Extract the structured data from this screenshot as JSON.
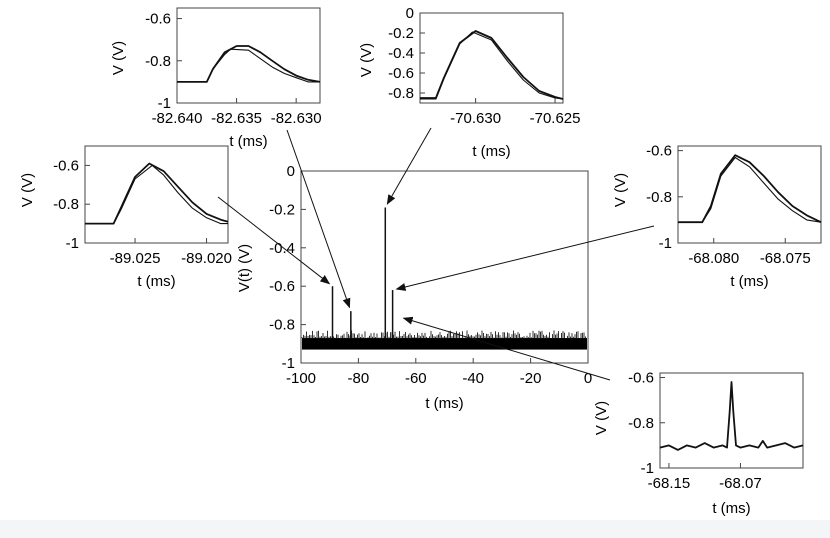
{
  "chart_data": [
    {
      "id": "main",
      "type": "line",
      "xlabel": "t  (ms)",
      "ylabel": "V(t)  (V)",
      "xlim": [
        -100,
        0
      ],
      "ylim": [
        -1,
        0
      ],
      "xticks": [
        -100,
        -80,
        -60,
        -40,
        -20,
        0
      ],
      "yticks": [
        -1,
        -0.8,
        -0.6,
        -0.4,
        -0.2,
        0
      ],
      "xtick_labels": [
        "-100",
        "-80",
        "-60",
        "-40",
        "-20",
        "0"
      ],
      "ytick_labels": [
        "-1",
        "-0.8",
        "-0.6",
        "-0.4",
        "-0.2",
        "0"
      ],
      "noise_band": [
        -0.93,
        -0.83
      ],
      "spikes": [
        {
          "t": -89.02,
          "v": -0.6
        },
        {
          "t": -82.635,
          "v": -0.73
        },
        {
          "t": -70.63,
          "v": -0.19
        },
        {
          "t": -68.08,
          "v": -0.62
        }
      ]
    },
    {
      "id": "inset-top-left",
      "type": "line",
      "xlabel": "t  (ms)",
      "ylabel": "V  (V)",
      "xlim": [
        -82.64,
        -82.628
      ],
      "ylim": [
        -1,
        -0.55
      ],
      "xticks": [
        -82.64,
        -82.635,
        -82.63
      ],
      "yticks": [
        -1,
        -0.8,
        -0.6
      ],
      "xtick_labels": [
        "-82.640",
        "-82.635",
        "-82.630"
      ],
      "ytick_labels": [
        "-1",
        "-0.8",
        "-0.6"
      ],
      "series": [
        {
          "x": [
            -82.64,
            -82.638,
            -82.6375,
            -82.637,
            -82.636,
            -82.635,
            -82.634,
            -82.633,
            -82.632,
            -82.631,
            -82.63,
            -82.629,
            -82.628
          ],
          "values": [
            -0.9,
            -0.9,
            -0.9,
            -0.84,
            -0.76,
            -0.73,
            -0.73,
            -0.76,
            -0.8,
            -0.84,
            -0.87,
            -0.89,
            -0.9
          ]
        },
        {
          "x": [
            -82.64,
            -82.638,
            -82.6375,
            -82.637,
            -82.636,
            -82.6355,
            -82.634,
            -82.633,
            -82.632,
            -82.631,
            -82.63,
            -82.629,
            -82.628
          ],
          "values": [
            -0.9,
            -0.9,
            -0.9,
            -0.84,
            -0.77,
            -0.745,
            -0.75,
            -0.79,
            -0.83,
            -0.86,
            -0.88,
            -0.9,
            -0.9
          ]
        }
      ]
    },
    {
      "id": "inset-top-center",
      "type": "line",
      "xlabel": "t  (ms)",
      "ylabel": "V  (V)",
      "xlim": [
        -70.6335,
        -70.6245
      ],
      "ylim": [
        -0.9,
        0
      ],
      "xticks": [
        -70.63,
        -70.625
      ],
      "yticks": [
        -0.8,
        -0.6,
        -0.4,
        -0.2,
        0
      ],
      "xtick_labels": [
        "-70.630",
        "-70.625"
      ],
      "ytick_labels": [
        "-0.8",
        "-0.6",
        "-0.4",
        "-0.2",
        "0"
      ],
      "series": [
        {
          "x": [
            -70.6335,
            -70.6325,
            -70.632,
            -70.631,
            -70.63,
            -70.629,
            -70.628,
            -70.627,
            -70.626,
            -70.625,
            -70.6245
          ],
          "values": [
            -0.85,
            -0.85,
            -0.65,
            -0.3,
            -0.18,
            -0.25,
            -0.45,
            -0.64,
            -0.78,
            -0.84,
            -0.86
          ]
        },
        {
          "x": [
            -70.6335,
            -70.6325,
            -70.632,
            -70.631,
            -70.6302,
            -70.629,
            -70.628,
            -70.627,
            -70.626,
            -70.625,
            -70.6245
          ],
          "values": [
            -0.86,
            -0.86,
            -0.66,
            -0.31,
            -0.19,
            -0.27,
            -0.48,
            -0.67,
            -0.8,
            -0.85,
            -0.86
          ]
        }
      ]
    },
    {
      "id": "inset-left",
      "type": "line",
      "xlabel": "t  (ms)",
      "ylabel": "V  (V)",
      "xlim": [
        -89.0285,
        -89.0185
      ],
      "ylim": [
        -1,
        -0.5
      ],
      "xticks": [
        -89.025,
        -89.02
      ],
      "yticks": [
        -1,
        -0.8,
        -0.6
      ],
      "xtick_labels": [
        "-89.025",
        "-89.020"
      ],
      "ytick_labels": [
        "-1",
        "-0.8",
        "-0.6"
      ],
      "series": [
        {
          "x": [
            -89.0285,
            -89.0265,
            -89.026,
            -89.025,
            -89.024,
            -89.023,
            -89.022,
            -89.021,
            -89.02,
            -89.019,
            -89.0185
          ],
          "values": [
            -0.9,
            -0.9,
            -0.82,
            -0.66,
            -0.59,
            -0.63,
            -0.71,
            -0.79,
            -0.85,
            -0.88,
            -0.89
          ]
        },
        {
          "x": [
            -89.0285,
            -89.0265,
            -89.026,
            -89.025,
            -89.0238,
            -89.023,
            -89.022,
            -89.021,
            -89.02,
            -89.019,
            -89.0185
          ],
          "values": [
            -0.9,
            -0.9,
            -0.83,
            -0.67,
            -0.6,
            -0.65,
            -0.74,
            -0.82,
            -0.87,
            -0.9,
            -0.9
          ]
        }
      ]
    },
    {
      "id": "inset-right",
      "type": "line",
      "xlabel": "t  (ms)",
      "ylabel": "V  (V)",
      "xlim": [
        -68.0825,
        -68.0725
      ],
      "ylim": [
        -1,
        -0.58
      ],
      "xticks": [
        -68.08,
        -68.075
      ],
      "yticks": [
        -1,
        -0.8,
        -0.6
      ],
      "xtick_labels": [
        "-68.080",
        "-68.075"
      ],
      "ytick_labels": [
        "-1",
        "-0.8",
        "-0.6"
      ],
      "series": [
        {
          "x": [
            -68.0825,
            -68.0808,
            -68.0802,
            -68.0795,
            -68.0785,
            -68.0775,
            -68.0765,
            -68.0755,
            -68.0745,
            -68.0735,
            -68.0725
          ],
          "values": [
            -0.91,
            -0.91,
            -0.84,
            -0.7,
            -0.62,
            -0.65,
            -0.71,
            -0.78,
            -0.84,
            -0.88,
            -0.91
          ]
        },
        {
          "x": [
            -68.0825,
            -68.0808,
            -68.0802,
            -68.0795,
            -68.0785,
            -68.0775,
            -68.0765,
            -68.0755,
            -68.0745,
            -68.0735,
            -68.0725
          ],
          "values": [
            -0.91,
            -0.91,
            -0.85,
            -0.71,
            -0.63,
            -0.67,
            -0.74,
            -0.81,
            -0.86,
            -0.9,
            -0.91
          ]
        }
      ]
    },
    {
      "id": "inset-bottom-right",
      "type": "line",
      "xlabel": "t  (ms)",
      "ylabel": "V  (V)",
      "xlim": [
        -68.16,
        -68.0
      ],
      "ylim": [
        -1,
        -0.58
      ],
      "xticks": [
        -68.15,
        -68.07
      ],
      "yticks": [
        -1,
        -0.8,
        -0.6
      ],
      "xtick_labels": [
        "-68.15",
        "-68.07"
      ],
      "ytick_labels": [
        "-1",
        "-0.8",
        "-0.6"
      ],
      "series": [
        {
          "x": [
            -68.16,
            -68.15,
            -68.14,
            -68.13,
            -68.12,
            -68.11,
            -68.1,
            -68.09,
            -68.085,
            -68.082,
            -68.08,
            -68.078,
            -68.075,
            -68.07,
            -68.06,
            -68.05,
            -68.045,
            -68.04,
            -68.03,
            -68.02,
            -68.01,
            -68.0
          ],
          "values": [
            -0.91,
            -0.9,
            -0.92,
            -0.9,
            -0.91,
            -0.89,
            -0.91,
            -0.9,
            -0.91,
            -0.75,
            -0.62,
            -0.75,
            -0.9,
            -0.91,
            -0.9,
            -0.91,
            -0.88,
            -0.91,
            -0.9,
            -0.89,
            -0.91,
            -0.9
          ]
        }
      ]
    }
  ]
}
